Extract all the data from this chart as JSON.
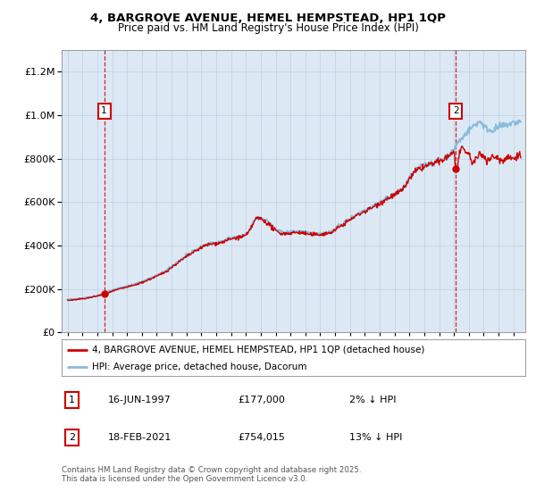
{
  "title_line1": "4, BARGROVE AVENUE, HEMEL HEMPSTEAD, HP1 1QP",
  "title_line2": "Price paid vs. HM Land Registry's House Price Index (HPI)",
  "fig_bg_color": "#ffffff",
  "plot_bg_color": "#dce9f5",
  "grid_color": "#b8c8dc",
  "line_red_color": "#cc0000",
  "line_blue_color": "#88bbdd",
  "point1_year": 1997.46,
  "point1_value": 177000,
  "point2_year": 2021.12,
  "point2_value": 754015,
  "ylim_min": 0,
  "ylim_max": 1300000,
  "xlim_min": 1994.6,
  "xlim_max": 2025.8,
  "legend_red_label": "4, BARGROVE AVENUE, HEMEL HEMPSTEAD, HP1 1QP (detached house)",
  "legend_blue_label": "HPI: Average price, detached house, Dacorum",
  "annot1_label": "1",
  "annot1_date": "16-JUN-1997",
  "annot1_price": "£177,000",
  "annot1_hpi": "2% ↓ HPI",
  "annot2_label": "2",
  "annot2_date": "18-FEB-2021",
  "annot2_price": "£754,015",
  "annot2_hpi": "13% ↓ HPI",
  "footer": "Contains HM Land Registry data © Crown copyright and database right 2025.\nThis data is licensed under the Open Government Licence v3.0."
}
